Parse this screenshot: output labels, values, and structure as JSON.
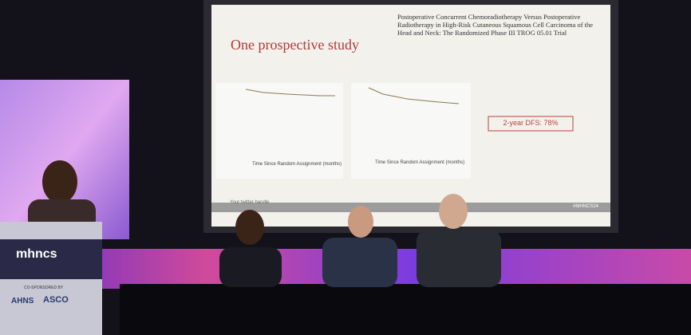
{
  "slide": {
    "title": "One prospective study",
    "paper_title": "Postoperative Concurrent Chemoradiotherapy Versus Postoperative Radiotherapy in High-Risk Cutaneous Squamous Cell Carcinoma of the Head and Neck: The Randomized Phase III TROG 05.01 Trial",
    "highlight": "2-year DFS: 78%",
    "x_axis_label": "Time Since Random Assignment (months)",
    "footer_left": "Your twitter handle",
    "footer_right": "#MHNCS24"
  },
  "podium": {
    "logo": "mhncs",
    "co_sponsored": "CO-SPONSORED BY",
    "sponsors": [
      "AHNS",
      "ASCO"
    ]
  }
}
